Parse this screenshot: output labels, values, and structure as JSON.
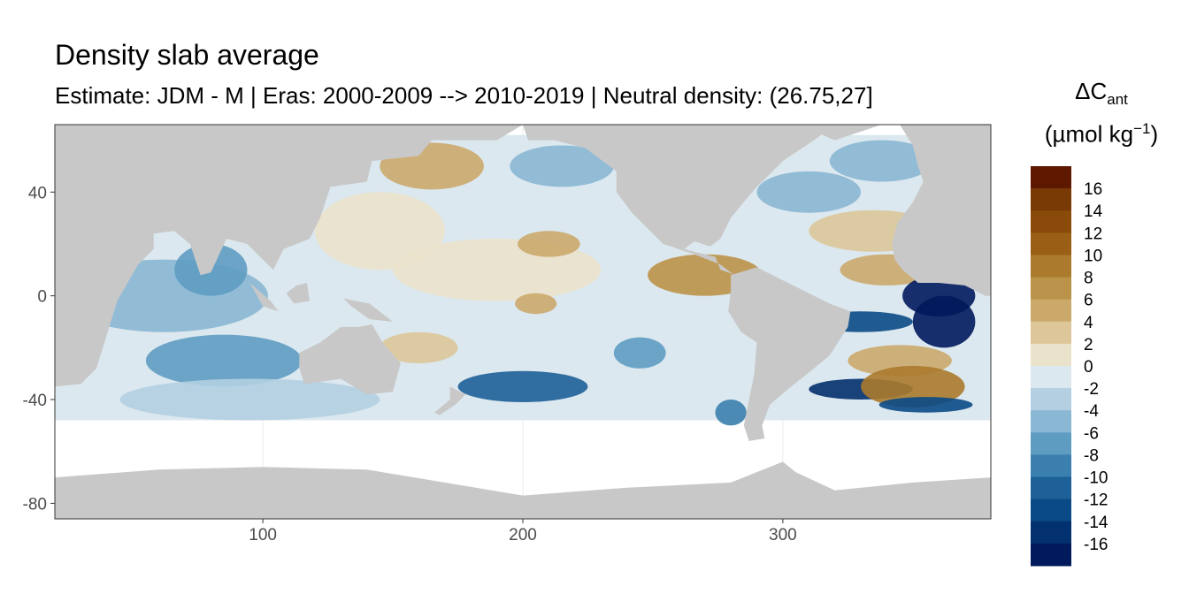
{
  "title": "Density slab average",
  "subtitle": "Estimate: JDM - M | Eras: 2000-2009 --> 2010-2019 | Neutral density: (26.75,27]",
  "colors": {
    "land": "#c8c8c8",
    "background": "#ffffff",
    "panel_border": "#333333",
    "gridline": "#ebebeb"
  },
  "chart_data": {
    "type": "heatmap",
    "x_axis": {
      "range": [
        20,
        380
      ],
      "ticks": [
        100,
        200,
        300
      ],
      "tick_labels": [
        "100",
        "200",
        "300"
      ]
    },
    "y_axis": {
      "range": [
        -86,
        66
      ],
      "ticks": [
        40,
        0,
        -40,
        -80
      ],
      "tick_labels": [
        "40",
        "0",
        "-40",
        "-80"
      ]
    },
    "legend": {
      "title_main": "ΔC",
      "title_sub": "ant",
      "unit_prefix": "(µmol kg",
      "unit_sup": "−1",
      "unit_suffix": ")",
      "placement": "right",
      "bins": [
        {
          "color": "#5e1800"
        },
        {
          "color": "#7a3a06"
        },
        {
          "color": "#8a4b0a"
        },
        {
          "color": "#9a5e14"
        },
        {
          "color": "#ab7a2c"
        },
        {
          "color": "#bb9249"
        },
        {
          "color": "#cba96b"
        },
        {
          "color": "#dcc69a"
        },
        {
          "color": "#ebe2cb"
        },
        {
          "color": "#dce8ef"
        },
        {
          "color": "#b3cfe1"
        },
        {
          "color": "#8ab7d3"
        },
        {
          "color": "#5e9cc2"
        },
        {
          "color": "#3a7fad"
        },
        {
          "color": "#1d6198"
        },
        {
          "color": "#0a4a86"
        },
        {
          "color": "#03306e"
        },
        {
          "color": "#001a5c"
        }
      ],
      "labels": [
        "16",
        "14",
        "12",
        "10",
        "8",
        "6",
        "4",
        "2",
        "0",
        "-2",
        "-4",
        "-6",
        "-8",
        "-10",
        "-12",
        "-14",
        "-16"
      ]
    },
    "land_regions": [
      {
        "name": "Africa",
        "points": [
          [
            20,
            38
          ],
          [
            32,
            31
          ],
          [
            44,
            14
          ],
          [
            52,
            12
          ],
          [
            44,
            -2
          ],
          [
            40,
            -15
          ],
          [
            36,
            -28
          ],
          [
            30,
            -34
          ],
          [
            20,
            -35
          ]
        ]
      },
      {
        "name": "Eurasia",
        "points": [
          [
            20,
            66
          ],
          [
            200,
            66
          ],
          [
            190,
            60
          ],
          [
            165,
            60
          ],
          [
            160,
            54
          ],
          [
            142,
            52
          ],
          [
            140,
            44
          ],
          [
            126,
            42
          ],
          [
            122,
            30
          ],
          [
            118,
            22
          ],
          [
            108,
            18
          ],
          [
            104,
            10
          ],
          [
            100,
            14
          ],
          [
            94,
            20
          ],
          [
            86,
            22
          ],
          [
            78,
            9
          ],
          [
            72,
            20
          ],
          [
            66,
            25
          ],
          [
            58,
            24
          ],
          [
            50,
            30
          ],
          [
            48,
            29
          ],
          [
            44,
            14
          ],
          [
            36,
            22
          ],
          [
            32,
            31
          ],
          [
            20,
            38
          ]
        ]
      },
      {
        "name": "Arabia",
        "points": [
          [
            44,
            14
          ],
          [
            52,
            12
          ],
          [
            58,
            18
          ],
          [
            58,
            24
          ],
          [
            50,
            30
          ],
          [
            48,
            29
          ],
          [
            42,
            28
          ]
        ]
      },
      {
        "name": "India",
        "points": [
          [
            66,
            25
          ],
          [
            72,
            20
          ],
          [
            76,
            8
          ],
          [
            80,
            9
          ],
          [
            86,
            22
          ],
          [
            78,
            25
          ]
        ]
      },
      {
        "name": "Borneo-Sumatra",
        "points": [
          [
            95,
            5
          ],
          [
            103,
            -2
          ],
          [
            106,
            -6
          ],
          [
            100,
            -4
          ]
        ]
      },
      {
        "name": "Borneo",
        "points": [
          [
            109,
            1
          ],
          [
            112,
            -3
          ],
          [
            118,
            -2
          ],
          [
            117,
            5
          ],
          [
            113,
            4
          ]
        ]
      },
      {
        "name": "New Guinea",
        "points": [
          [
            131,
            -1
          ],
          [
            141,
            -3
          ],
          [
            150,
            -10
          ],
          [
            141,
            -9
          ],
          [
            134,
            -4
          ]
        ]
      },
      {
        "name": "Australia",
        "points": [
          [
            114,
            -22
          ],
          [
            122,
            -18
          ],
          [
            130,
            -12
          ],
          [
            137,
            -12
          ],
          [
            142,
            -11
          ],
          [
            146,
            -18
          ],
          [
            153,
            -26
          ],
          [
            150,
            -37
          ],
          [
            140,
            -38
          ],
          [
            135,
            -35
          ],
          [
            130,
            -32
          ],
          [
            116,
            -34
          ],
          [
            114,
            -28
          ]
        ]
      },
      {
        "name": "New Zealand",
        "points": [
          [
            172,
            -35
          ],
          [
            178,
            -38
          ],
          [
            174,
            -42
          ],
          [
            168,
            -46
          ],
          [
            166,
            -45
          ],
          [
            172,
            -40
          ]
        ]
      },
      {
        "name": "North America",
        "points": [
          [
            200,
            66
          ],
          [
            320,
            66
          ],
          [
            312,
            60
          ],
          [
            300,
            52
          ],
          [
            294,
            46
          ],
          [
            290,
            42
          ],
          [
            284,
            35
          ],
          [
            280,
            30
          ],
          [
            278,
            26
          ],
          [
            276,
            22
          ],
          [
            272,
            19
          ],
          [
            266,
            21
          ],
          [
            262,
            18
          ],
          [
            274,
            15
          ],
          [
            276,
            10
          ],
          [
            282,
            8
          ],
          [
            280,
            9
          ],
          [
            276,
            12
          ],
          [
            266,
            16
          ],
          [
            254,
            20
          ],
          [
            250,
            24
          ],
          [
            242,
            32
          ],
          [
            236,
            40
          ],
          [
            236,
            48
          ],
          [
            224,
            57
          ],
          [
            212,
            60
          ],
          [
            202,
            60
          ]
        ]
      },
      {
        "name": "South America",
        "points": [
          [
            280,
            8
          ],
          [
            290,
            11
          ],
          [
            300,
            6
          ],
          [
            310,
            1
          ],
          [
            318,
            -3
          ],
          [
            326,
            -6
          ],
          [
            325,
            -12
          ],
          [
            318,
            -23
          ],
          [
            312,
            -28
          ],
          [
            302,
            -36
          ],
          [
            295,
            -42
          ],
          [
            292,
            -50
          ],
          [
            293,
            -55
          ],
          [
            287,
            -56
          ],
          [
            285,
            -50
          ],
          [
            287,
            -40
          ],
          [
            289,
            -30
          ],
          [
            290,
            -18
          ],
          [
            284,
            -14
          ],
          [
            279,
            -6
          ],
          [
            280,
            2
          ]
        ]
      },
      {
        "name": "Greenland",
        "points": [
          [
            306,
            66
          ],
          [
            320,
            60
          ],
          [
            338,
            66
          ]
        ]
      },
      {
        "name": "Europe-Africa east",
        "points": [
          [
            345,
            66
          ],
          [
            350,
            58
          ],
          [
            352,
            50
          ],
          [
            354,
            44
          ],
          [
            350,
            36
          ],
          [
            344,
            28
          ],
          [
            342,
            20
          ],
          [
            343,
            14
          ],
          [
            346,
            10
          ],
          [
            352,
            5
          ],
          [
            360,
            5
          ],
          [
            370,
            4
          ],
          [
            378,
            0
          ],
          [
            380,
            0
          ],
          [
            380,
            66
          ]
        ]
      },
      {
        "name": "Antarctica",
        "points": [
          [
            20,
            -70
          ],
          [
            60,
            -67
          ],
          [
            100,
            -66
          ],
          [
            140,
            -67
          ],
          [
            170,
            -72
          ],
          [
            200,
            -77
          ],
          [
            240,
            -74
          ],
          [
            280,
            -72
          ],
          [
            300,
            -64
          ],
          [
            305,
            -68
          ],
          [
            320,
            -75
          ],
          [
            350,
            -72
          ],
          [
            380,
            -70
          ],
          [
            380,
            -86
          ],
          [
            20,
            -86
          ]
        ]
      }
    ],
    "anomaly_patches": [
      {
        "lon": 62,
        "lat": 0,
        "rx": 40,
        "ry": 14,
        "value": -5
      },
      {
        "lon": 80,
        "lat": 10,
        "rx": 14,
        "ry": 10,
        "value": -6
      },
      {
        "lon": 85,
        "lat": -25,
        "rx": 30,
        "ry": 10,
        "value": -6
      },
      {
        "lon": 95,
        "lat": -40,
        "rx": 50,
        "ry": 8,
        "value": -3
      },
      {
        "lon": 145,
        "lat": 25,
        "rx": 25,
        "ry": 15,
        "value": 1
      },
      {
        "lon": 165,
        "lat": 50,
        "rx": 20,
        "ry": 9,
        "value": 6
      },
      {
        "lon": 215,
        "lat": 50,
        "rx": 20,
        "ry": 8,
        "value": -5
      },
      {
        "lon": 190,
        "lat": 10,
        "rx": 40,
        "ry": 12,
        "value": 2
      },
      {
        "lon": 210,
        "lat": 20,
        "rx": 12,
        "ry": 5,
        "value": 6
      },
      {
        "lon": 205,
        "lat": -3,
        "rx": 8,
        "ry": 4,
        "value": 6
      },
      {
        "lon": 270,
        "lat": 8,
        "rx": 22,
        "ry": 8,
        "value": 8
      },
      {
        "lon": 200,
        "lat": -35,
        "rx": 25,
        "ry": 6,
        "value": -10
      },
      {
        "lon": 245,
        "lat": -22,
        "rx": 10,
        "ry": 6,
        "value": -7
      },
      {
        "lon": 280,
        "lat": -45,
        "rx": 6,
        "ry": 5,
        "value": -9
      },
      {
        "lon": 160,
        "lat": -20,
        "rx": 15,
        "ry": 6,
        "value": 3
      },
      {
        "lon": 335,
        "lat": 25,
        "rx": 25,
        "ry": 8,
        "value": 4
      },
      {
        "lon": 340,
        "lat": 10,
        "rx": 18,
        "ry": 6,
        "value": 6
      },
      {
        "lon": 310,
        "lat": 40,
        "rx": 20,
        "ry": 8,
        "value": -4
      },
      {
        "lon": 338,
        "lat": 52,
        "rx": 20,
        "ry": 8,
        "value": -5
      },
      {
        "lon": 360,
        "lat": 0,
        "rx": 14,
        "ry": 8,
        "value": -16
      },
      {
        "lon": 362,
        "lat": -10,
        "rx": 12,
        "ry": 10,
        "value": -16
      },
      {
        "lon": 330,
        "lat": -10,
        "rx": 20,
        "ry": 4,
        "value": -12
      },
      {
        "lon": 345,
        "lat": -25,
        "rx": 20,
        "ry": 6,
        "value": 6
      },
      {
        "lon": 330,
        "lat": -36,
        "rx": 20,
        "ry": 4,
        "value": -14
      },
      {
        "lon": 350,
        "lat": -35,
        "rx": 20,
        "ry": 8,
        "value": 10
      },
      {
        "lon": 355,
        "lat": -42,
        "rx": 18,
        "ry": 3,
        "value": -12
      }
    ]
  }
}
